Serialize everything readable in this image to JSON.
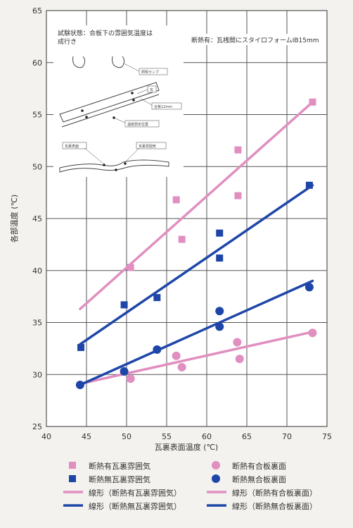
{
  "chart_data": {
    "type": "scatter",
    "xlabel": "瓦裏表面温度 (℃)",
    "ylabel": "各部温度 (℃)",
    "xlim": [
      40,
      75
    ],
    "ylim": [
      25,
      65
    ],
    "xticks": [
      40,
      45,
      50,
      55,
      60,
      65,
      70,
      75
    ],
    "yticks": [
      25,
      30,
      35,
      40,
      45,
      50,
      55,
      60,
      65
    ],
    "grid": true,
    "legend_position": "bottom",
    "series": [
      {
        "name": "断熱有瓦裏雰囲気",
        "marker": "square",
        "color": "#e08fc0",
        "x": [
          50.5,
          56.2,
          56.9,
          63.9,
          63.9,
          73.2
        ],
        "y": [
          40.3,
          46.8,
          43.0,
          51.6,
          47.2,
          56.2
        ]
      },
      {
        "name": "断熱無瓦裏雰囲気",
        "marker": "square",
        "color": "#1e46a8",
        "x": [
          44.3,
          49.7,
          53.8,
          61.6,
          61.6,
          72.8
        ],
        "y": [
          32.6,
          36.7,
          37.4,
          43.6,
          41.2,
          48.2
        ]
      },
      {
        "name": "断熱有合板裏面",
        "marker": "circle",
        "color": "#e08fc0",
        "x": [
          50.5,
          56.2,
          56.9,
          63.8,
          64.1,
          73.2
        ],
        "y": [
          29.6,
          31.8,
          30.7,
          33.1,
          31.5,
          34.0
        ]
      },
      {
        "name": "断熱無合板裏面",
        "marker": "circle",
        "color": "#1e46a8",
        "x": [
          44.2,
          49.7,
          53.8,
          61.6,
          61.6,
          72.8
        ],
        "y": [
          29.0,
          30.3,
          32.4,
          36.1,
          34.6,
          38.4
        ]
      }
    ],
    "trendlines": [
      {
        "name": "線形（断熱有瓦裏雰囲気）",
        "color": "#e08fc0",
        "x": [
          44.2,
          73.2
        ],
        "y": [
          36.3,
          56.2
        ]
      },
      {
        "name": "線形（断熱無瓦裏雰囲気）",
        "color": "#1e46a8",
        "x": [
          44.2,
          73.2
        ],
        "y": [
          32.9,
          48.2
        ]
      },
      {
        "name": "線形（断熱有合板裏面）",
        "color": "#e08fc0",
        "x": [
          44.2,
          73.2
        ],
        "y": [
          29.1,
          34.1
        ]
      },
      {
        "name": "線形（断熱無合板裏面）",
        "color": "#1e46a8",
        "x": [
          44.2,
          73.2
        ],
        "y": [
          29.0,
          39.0
        ]
      }
    ],
    "annotations": {
      "test_condition_line1": "試験状態：合板下の雰囲気温度は",
      "test_condition_line2": "成行き",
      "insulation_note": "断熱有：瓦桟間にスタイロフォームIB15mm",
      "diagram_labels": [
        "照明ランプ",
        "瓦",
        "合板12mm",
        "温度測定位置",
        "瓦裏表面",
        "瓦裏雰囲気"
      ]
    }
  }
}
